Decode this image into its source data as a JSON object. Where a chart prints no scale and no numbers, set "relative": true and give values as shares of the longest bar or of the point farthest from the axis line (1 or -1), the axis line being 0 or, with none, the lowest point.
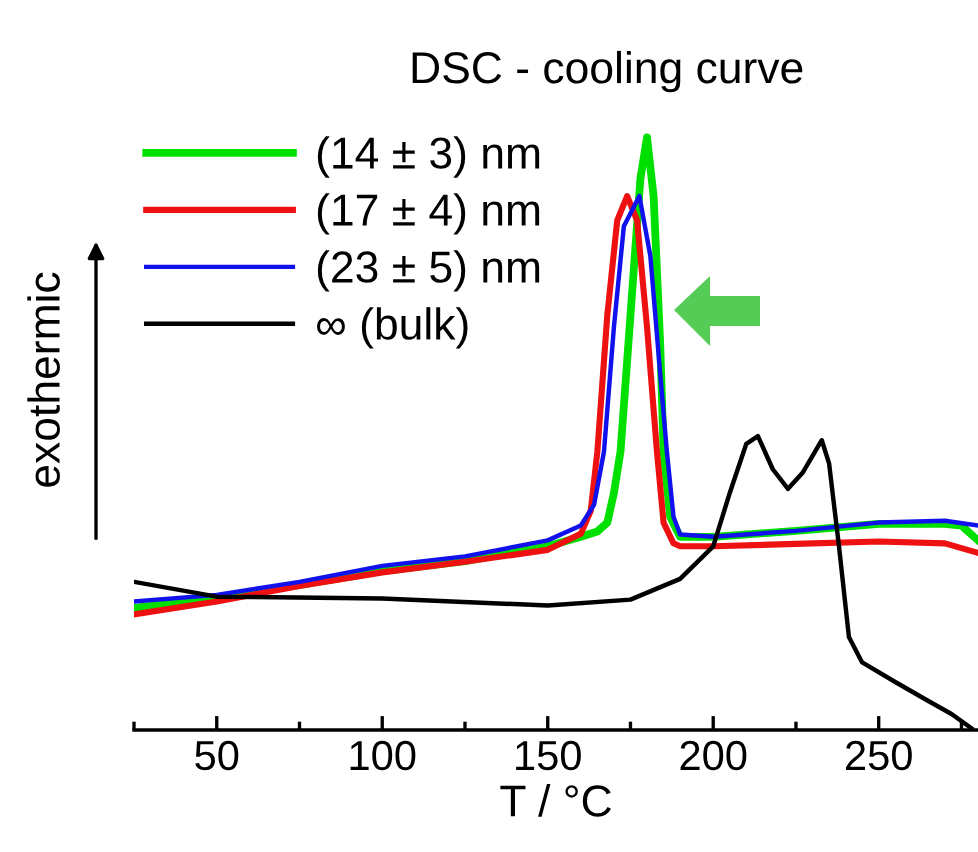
{
  "chart_data": {
    "type": "line",
    "title": "DSC - cooling curve",
    "xlabel": "T / °C",
    "ylabel": "exothermic",
    "relative": true,
    "xlim": [
      25,
      280
    ],
    "xticks": [
      {
        "value": 25,
        "label": null
      },
      50,
      {
        "value": 75,
        "label": null
      },
      100,
      {
        "value": 125,
        "label": null
      },
      150,
      {
        "value": 175,
        "label": null
      },
      200,
      {
        "value": 225,
        "label": null
      },
      250,
      {
        "value": 275,
        "label": null
      }
    ],
    "grid": false,
    "legend": "top left",
    "marker": "none",
    "line_style": "solid",
    "tick_labels": "x",
    "series": [
      {
        "name": "(14 ± 3) nm",
        "color": "#00e000",
        "x": [
          25,
          50,
          75,
          100,
          125,
          150,
          160,
          165,
          168,
          170,
          172,
          175,
          178,
          180,
          182,
          184,
          185,
          187,
          190,
          200,
          225,
          250,
          270,
          275,
          280
        ],
        "values": [
          0.206,
          0.222,
          0.245,
          0.268,
          0.285,
          0.31,
          0.326,
          0.335,
          0.35,
          0.4,
          0.47,
          0.7,
          0.93,
          1.0,
          0.9,
          0.65,
          0.47,
          0.36,
          0.326,
          0.326,
          0.336,
          0.348,
          0.348,
          0.345,
          0.32
        ]
      },
      {
        "name": "(17 ± 4) nm",
        "color": "#ee1111",
        "x": [
          25,
          50,
          75,
          100,
          125,
          150,
          160,
          163,
          165,
          168,
          171,
          174,
          177,
          180,
          183,
          185,
          188,
          190,
          200,
          225,
          250,
          270,
          280
        ],
        "values": [
          0.195,
          0.217,
          0.243,
          0.266,
          0.284,
          0.304,
          0.331,
          0.37,
          0.47,
          0.7,
          0.86,
          0.901,
          0.86,
          0.68,
          0.47,
          0.35,
          0.315,
          0.31,
          0.31,
          0.314,
          0.318,
          0.315,
          0.299
        ]
      },
      {
        "name": "(23 ± 5) nm",
        "color": "#1111ee",
        "x": [
          25,
          50,
          75,
          100,
          125,
          150,
          160,
          164,
          167,
          170,
          173,
          177.7,
          181,
          184,
          186,
          188,
          190,
          200,
          225,
          250,
          270,
          280
        ],
        "values": [
          0.217,
          0.228,
          0.25,
          0.277,
          0.293,
          0.32,
          0.345,
          0.38,
          0.47,
          0.68,
          0.85,
          0.901,
          0.8,
          0.6,
          0.47,
          0.36,
          0.33,
          0.326,
          0.336,
          0.35,
          0.353,
          0.345
        ]
      },
      {
        "name": "∞ (bulk)",
        "color": "#000000",
        "x": [
          25,
          50,
          100,
          150,
          175,
          190,
          200,
          205,
          210,
          213.5,
          218,
          222.6,
          227,
          232.8,
          235,
          238,
          241,
          245,
          255,
          265,
          272,
          278
        ],
        "values": [
          0.25,
          0.225,
          0.222,
          0.21,
          0.22,
          0.255,
          0.31,
          0.4,
          0.483,
          0.496,
          0.44,
          0.407,
          0.434,
          0.489,
          0.45,
          0.31,
          0.157,
          0.114,
          0.081,
          0.049,
          0.027,
          0.003
        ]
      }
    ]
  }
}
